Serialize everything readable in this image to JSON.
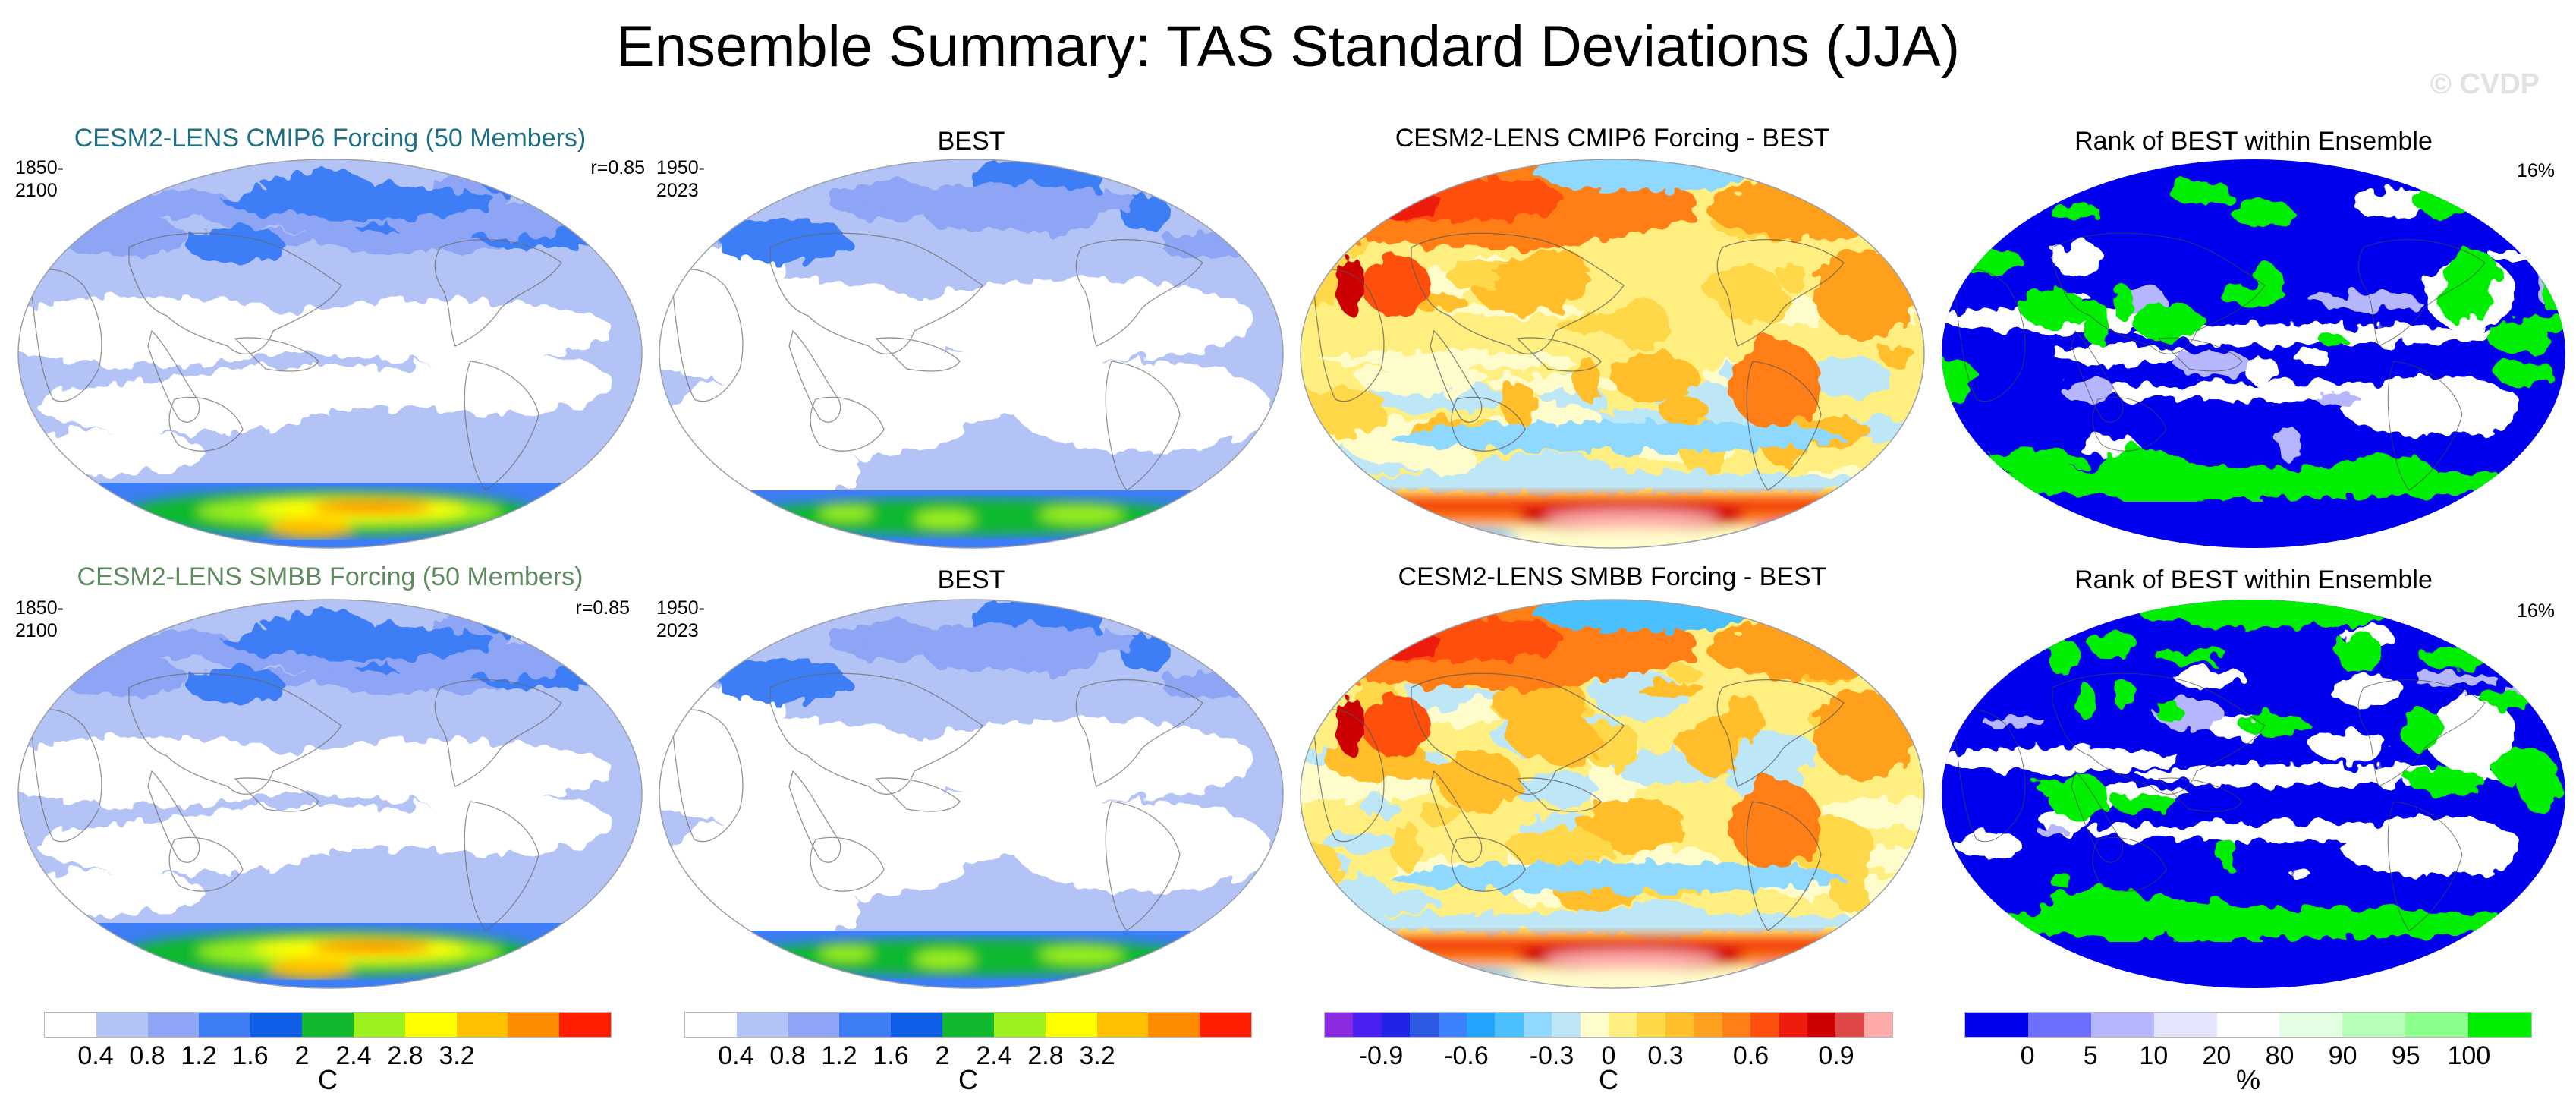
{
  "figure": {
    "title": "Ensemble Summary: TAS Standard Deviations (JJA)",
    "watermark": "© CVDP"
  },
  "panels": [
    {
      "title": "CESM2-LENS CMIP6 Forcing (50 Members)",
      "title_color": "#1f6f82",
      "left": "1850-2100",
      "right": "r=0.85",
      "kind": "std",
      "variant": "model"
    },
    {
      "title": "BEST",
      "title_color": "#000000",
      "left": "1950-2023",
      "right": "",
      "kind": "std",
      "variant": "obs"
    },
    {
      "title": "CESM2-LENS CMIP6 Forcing - BEST",
      "title_color": "#000000",
      "left": "",
      "right": "",
      "kind": "diff",
      "variant": "a"
    },
    {
      "title": "Rank of BEST within Ensemble",
      "title_color": "#000000",
      "left": "",
      "right": "16%",
      "kind": "rank",
      "variant": "a"
    },
    {
      "title": "CESM2-LENS SMBB Forcing (50 Members)",
      "title_color": "#5f8a5f",
      "left": "1850-2100",
      "right": "r=0.85",
      "kind": "std",
      "variant": "model"
    },
    {
      "title": "BEST",
      "title_color": "#000000",
      "left": "1950-2023",
      "right": "",
      "kind": "std",
      "variant": "obs"
    },
    {
      "title": "CESM2-LENS SMBB Forcing - BEST",
      "title_color": "#000000",
      "left": "",
      "right": "",
      "kind": "diff",
      "variant": "b"
    },
    {
      "title": "Rank of BEST within Ensemble",
      "title_color": "#000000",
      "left": "",
      "right": "16%",
      "kind": "rank",
      "variant": "b"
    }
  ],
  "colorbars": [
    {
      "name": "std-colorbar-1",
      "unit": "C",
      "colors": [
        "#ffffff",
        "#b4c3f5",
        "#8ea5f5",
        "#3d7df5",
        "#0f5ee8",
        "#10b92e",
        "#9bf01e",
        "#ffff00",
        "#ffc000",
        "#ff8c00",
        "#ff1e00"
      ],
      "ticks": [
        "0.4",
        "0.8",
        "1.2",
        "1.6",
        "2",
        "2.4",
        "2.8",
        "3.2"
      ]
    },
    {
      "name": "std-colorbar-2",
      "unit": "C",
      "colors": [
        "#ffffff",
        "#b4c3f5",
        "#8ea5f5",
        "#3d7df5",
        "#0f5ee8",
        "#10b92e",
        "#9bf01e",
        "#ffff00",
        "#ffc000",
        "#ff8c00",
        "#ff1e00"
      ],
      "ticks": [
        "0.4",
        "0.8",
        "1.2",
        "1.6",
        "2",
        "2.4",
        "2.8",
        "3.2"
      ]
    },
    {
      "name": "diff-colorbar",
      "unit": "C",
      "colors": [
        "#8a2be2",
        "#4b1ff0",
        "#2323e6",
        "#2e5ae6",
        "#3c82ff",
        "#22a5ff",
        "#4cc0ff",
        "#8fd8ff",
        "#bde6f7",
        "#fffccc",
        "#ffee80",
        "#ffd84a",
        "#ffbe2a",
        "#ffa01e",
        "#ff7f16",
        "#ff5010",
        "#ee1c0c",
        "#cc0000",
        "#e04848",
        "#ffaaaa"
      ],
      "ticks": [
        "-0.9",
        "-0.6",
        "-0.3",
        "0",
        "0.3",
        "0.6",
        "0.9"
      ],
      "tick_bins": [
        2,
        5,
        8,
        10,
        12,
        15,
        18
      ]
    },
    {
      "name": "rank-colorbar",
      "unit": "%",
      "colors": [
        "#0000ee",
        "#6f6fff",
        "#b6b6ff",
        "#e4e4ff",
        "#ffffff",
        "#e4ffe4",
        "#b8ffb8",
        "#8cff8c",
        "#00ee00"
      ],
      "ticks": [
        "0",
        "5",
        "10",
        "20",
        "80",
        "90",
        "95",
        "100"
      ]
    }
  ]
}
